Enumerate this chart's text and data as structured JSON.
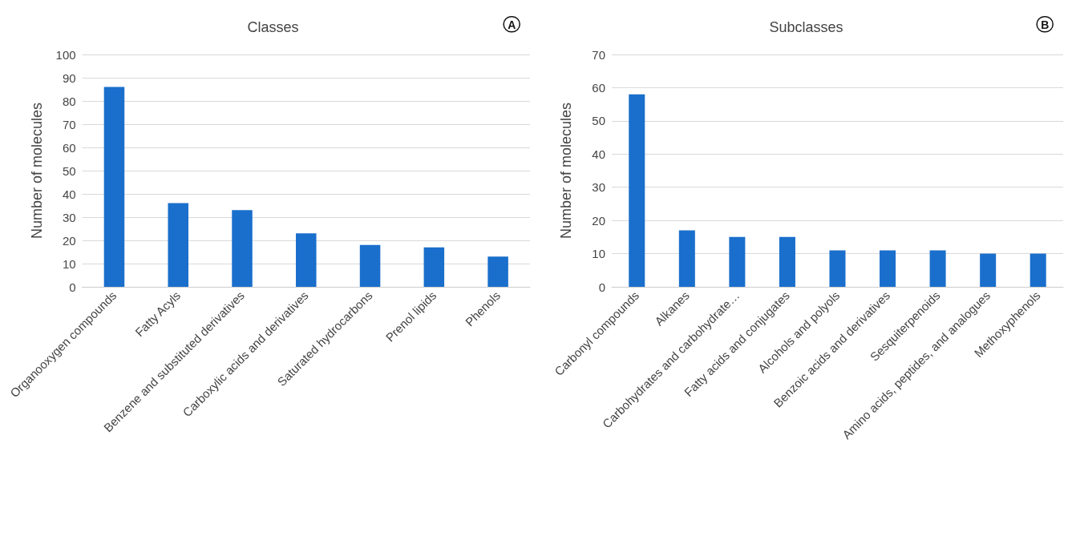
{
  "chart_data": [
    {
      "type": "bar",
      "title": "Classes",
      "ylabel": "Number of molecules",
      "annotations": [
        "A"
      ],
      "categories": [
        "Organooxygen compounds",
        "Fatty Acyls",
        "Benzene and substituted derivatives",
        "Carboxylic acids and derivatives",
        "Saturated hydrocarbons",
        "Prenol lipids",
        "Phenols"
      ],
      "values": [
        86,
        36,
        33,
        23,
        18,
        17,
        13
      ],
      "color": "#1a6fcc",
      "ylim": [
        0,
        100
      ],
      "yticks": [
        0,
        10,
        20,
        30,
        40,
        50,
        60,
        70,
        80,
        90,
        100
      ],
      "grid": "y"
    },
    {
      "type": "bar",
      "title": "Subclasses",
      "ylabel": "Number of molecules",
      "annotations": [
        "B"
      ],
      "categories": [
        "Carbonyl compounds",
        "Alkanes",
        "Carbohydrates and carbohydrate…",
        "Fatty acids and conjugates",
        "Alcohols and polyols",
        "Benzoic acids and derivatives",
        "Sesquiterpenoids",
        "Amino acids, peptides, and analogues",
        "Methoxyphenols"
      ],
      "values": [
        58,
        17,
        15,
        15,
        11,
        11,
        11,
        10,
        10
      ],
      "color": "#1a6fcc",
      "ylim": [
        0,
        70
      ],
      "yticks": [
        0,
        10,
        20,
        30,
        40,
        50,
        60,
        70
      ],
      "grid": "y"
    }
  ]
}
